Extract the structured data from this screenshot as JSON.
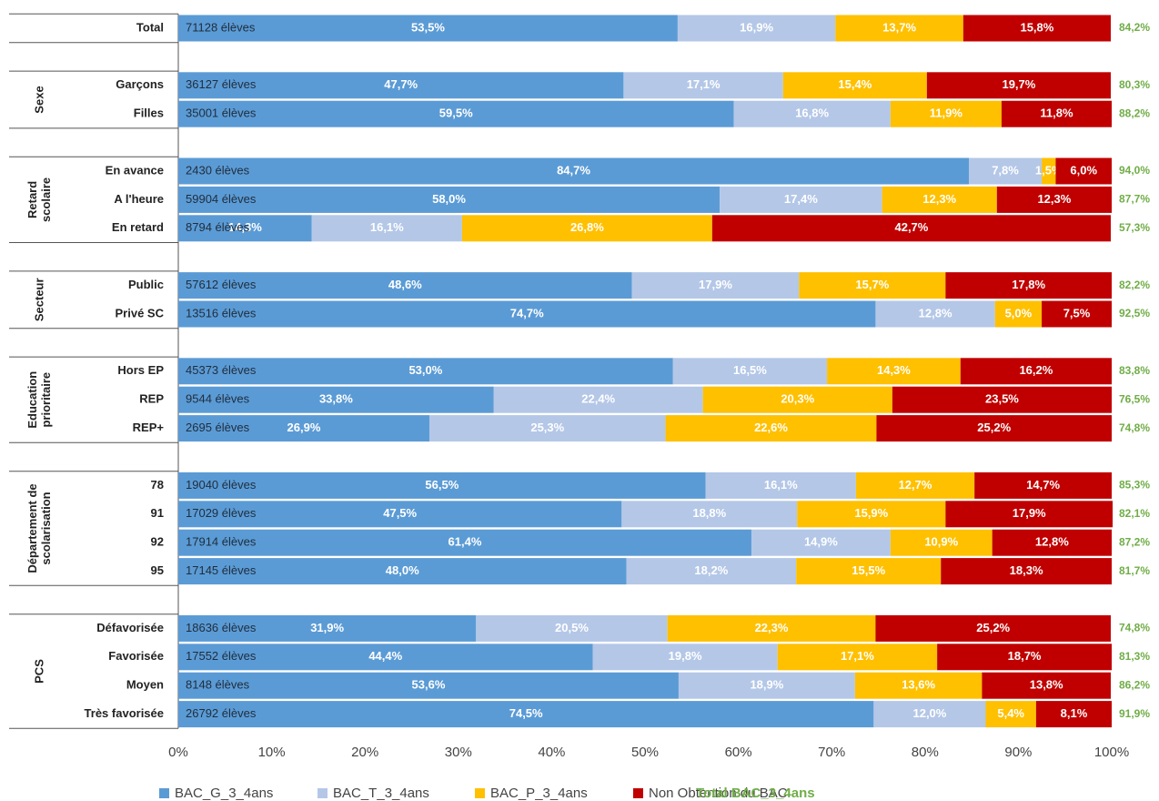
{
  "chart_data": {
    "type": "stacked_bar_horizontal",
    "categories": [
      "Total",
      null,
      "Garçons",
      "Filles",
      null,
      "En avance",
      "A l'heure",
      "En retard",
      null,
      "Public",
      "Privé SC",
      null,
      "Hors EP",
      "REP",
      "REP+",
      null,
      "78",
      "91",
      "92",
      "95",
      null,
      "Défavorisée",
      "Favorisée",
      "Moyen",
      "Très favorisée"
    ],
    "groups": [
      null,
      [
        "Sexe"
      ],
      [
        "Retard",
        "scolaire"
      ],
      [
        "Secteur"
      ],
      [
        "Education",
        "prioritaire"
      ],
      [
        "Département de",
        "scolarisation"
      ],
      [
        "PCS"
      ]
    ],
    "counts": [
      "71128 élèves",
      null,
      "36127 élèves",
      "35001 élèves",
      null,
      "2430 élèves",
      "59904 élèves",
      "8794 élèves",
      null,
      "57612 élèves",
      "13516 élèves",
      null,
      "45373 élèves",
      "9544 élèves",
      "2695 élèves",
      null,
      "19040 élèves",
      "17029 élèves",
      "17914 élèves",
      "17145 élèves",
      null,
      "18636 élèves",
      "17552 élèves",
      "8148 élèves",
      "26792 élèves"
    ],
    "xlim": [
      0,
      100
    ],
    "xticks": [
      {
        "value": 0,
        "label": "0%"
      },
      {
        "value": 10,
        "label": "10%"
      },
      {
        "value": 20,
        "label": "20%"
      },
      {
        "value": 30,
        "label": "30%"
      },
      {
        "value": 40,
        "label": "40%"
      },
      {
        "value": 50,
        "label": "50%"
      },
      {
        "value": 60,
        "label": "60%"
      },
      {
        "value": 70,
        "label": "70%"
      },
      {
        "value": 80,
        "label": "80%"
      },
      {
        "value": 90,
        "label": "90%"
      },
      {
        "value": 100,
        "label": "100%"
      }
    ],
    "series": [
      {
        "name": "BAC_G_3_4ans",
        "color": "#5b9bd5",
        "values": [
          53.5,
          null,
          47.7,
          59.5,
          null,
          84.7,
          58.0,
          14.3,
          null,
          48.6,
          74.7,
          null,
          53.0,
          33.8,
          26.9,
          null,
          56.5,
          47.5,
          61.4,
          48.0,
          null,
          31.9,
          44.4,
          53.6,
          74.5
        ],
        "value_labels": [
          "53,5%",
          null,
          "47,7%",
          "59,5%",
          null,
          "84,7%",
          "58,0%",
          "14,3%",
          null,
          "48,6%",
          "74,7%",
          null,
          "53,0%",
          "33,8%",
          "26,9%",
          null,
          "56,5%",
          "47,5%",
          "61,4%",
          "48,0%",
          null,
          "31,9%",
          "44,4%",
          "53,6%",
          "74,5%"
        ]
      },
      {
        "name": "BAC_T_3_4ans",
        "color": "#b4c7e7",
        "values": [
          16.9,
          null,
          17.1,
          16.8,
          null,
          7.8,
          17.4,
          16.1,
          null,
          17.9,
          12.8,
          null,
          16.5,
          22.4,
          25.3,
          null,
          16.1,
          18.8,
          14.9,
          18.2,
          null,
          20.5,
          19.8,
          18.9,
          12.0
        ],
        "value_labels": [
          "16,9%",
          null,
          "17,1%",
          "16,8%",
          null,
          "7,8%",
          "17,4%",
          "16,1%",
          null,
          "17,9%",
          "12,8%",
          null,
          "16,5%",
          "22,4%",
          "25,3%",
          null,
          "16,1%",
          "18,8%",
          "14,9%",
          "18,2%",
          null,
          "20,5%",
          "19,8%",
          "18,9%",
          "12,0%"
        ]
      },
      {
        "name": "BAC_P_3_4ans",
        "color": "#ffc000",
        "values": [
          13.7,
          null,
          15.4,
          11.9,
          null,
          1.5,
          12.3,
          26.8,
          null,
          15.7,
          5.0,
          null,
          14.3,
          20.3,
          22.6,
          null,
          12.7,
          15.9,
          10.9,
          15.5,
          null,
          22.3,
          17.1,
          13.6,
          5.4
        ],
        "value_labels": [
          "13,7%",
          null,
          "15,4%",
          "11,9%",
          null,
          "1,5%",
          "12,3%",
          "26,8%",
          null,
          "15,7%",
          "5,0%",
          null,
          "14,3%",
          "20,3%",
          "22,6%",
          null,
          "12,7%",
          "15,9%",
          "10,9%",
          "15,5%",
          null,
          "22,3%",
          "17,1%",
          "13,6%",
          "5,4%"
        ]
      },
      {
        "name": "Non Obtention du BAC",
        "color": "#c00000",
        "values": [
          15.8,
          null,
          19.7,
          11.8,
          null,
          6.0,
          12.3,
          42.7,
          null,
          17.8,
          7.5,
          null,
          16.2,
          23.5,
          25.2,
          null,
          14.7,
          17.9,
          12.8,
          18.3,
          null,
          25.2,
          18.7,
          13.8,
          8.1
        ],
        "value_labels": [
          "15,8%",
          null,
          "19,7%",
          "11,8%",
          null,
          "6,0%",
          "12,3%",
          "42,7%",
          null,
          "17,8%",
          "7,5%",
          null,
          "16,2%",
          "23,5%",
          "25,2%",
          null,
          "14,7%",
          "17,9%",
          "12,8%",
          "18,3%",
          null,
          "25,2%",
          "18,7%",
          "13,8%",
          "8,1%"
        ]
      }
    ],
    "totals": {
      "name": "Total BAC_3_4ans",
      "color": "#70ad47",
      "values": [
        84.2,
        null,
        80.3,
        88.2,
        null,
        94.0,
        87.7,
        57.3,
        null,
        82.2,
        92.5,
        null,
        83.8,
        76.5,
        74.8,
        null,
        85.3,
        82.1,
        87.2,
        81.7,
        null,
        74.8,
        81.3,
        86.2,
        91.9
      ],
      "value_labels": [
        "84,2%",
        null,
        "80,3%",
        "88,2%",
        null,
        "94,0%",
        "87,7%",
        "57,3%",
        null,
        "82,2%",
        "92,5%",
        null,
        "83,8%",
        "76,5%",
        "74,8%",
        null,
        "85,3%",
        "82,1%",
        "87,2%",
        "81,7%",
        null,
        "74,8%",
        "81,3%",
        "86,2%",
        "91,9%"
      ]
    }
  }
}
